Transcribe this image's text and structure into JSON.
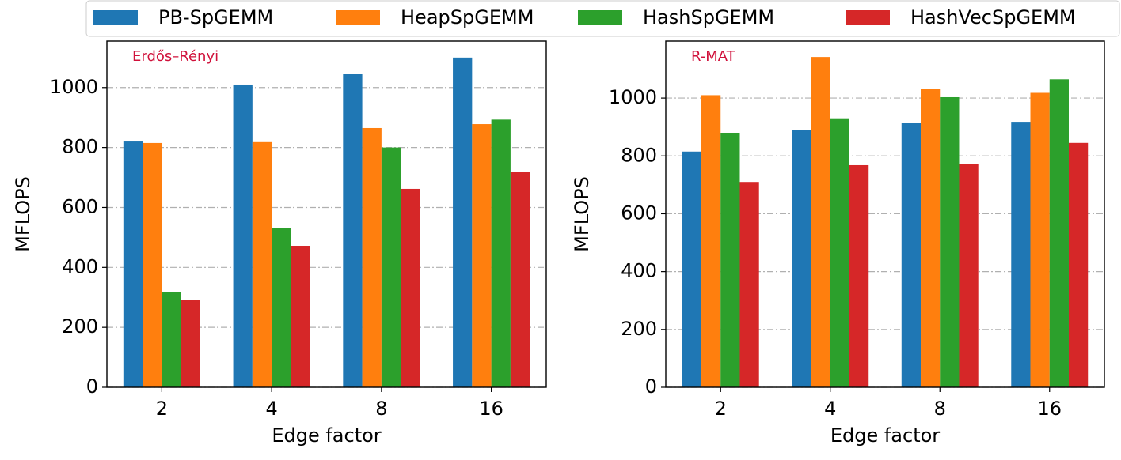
{
  "legend": [
    {
      "name": "PB-SpGEMM",
      "color": "#1f77b4"
    },
    {
      "name": "HeapSpGEMM",
      "color": "#ff7f0e"
    },
    {
      "name": "HashSpGEMM",
      "color": "#2ca02c"
    },
    {
      "name": "HashVecSpGEMM",
      "color": "#d62728"
    }
  ],
  "chart_data": [
    {
      "type": "bar",
      "annotation": "Erdős–Rényi",
      "xlabel": "Edge factor",
      "ylabel": "MFLOPS",
      "categories": [
        "2",
        "4",
        "8",
        "16"
      ],
      "series": [
        {
          "values": [
            820,
            1010,
            1045,
            1100
          ]
        },
        {
          "values": [
            815,
            818,
            865,
            878
          ]
        },
        {
          "values": [
            318,
            532,
            800,
            893
          ]
        },
        {
          "values": [
            292,
            472,
            662,
            718
          ]
        }
      ],
      "ylim": [
        0,
        1155
      ],
      "yticks": [
        0,
        200,
        400,
        600,
        800,
        1000
      ],
      "grid": true
    },
    {
      "type": "bar",
      "annotation": "R-MAT",
      "xlabel": "Edge factor",
      "ylabel": "MFLOPS",
      "categories": [
        "2",
        "4",
        "8",
        "16"
      ],
      "series": [
        {
          "values": [
            815,
            890,
            915,
            918
          ]
        },
        {
          "values": [
            1010,
            1142,
            1032,
            1018
          ]
        },
        {
          "values": [
            880,
            930,
            1003,
            1065
          ]
        },
        {
          "values": [
            710,
            768,
            773,
            845
          ]
        }
      ],
      "ylim": [
        0,
        1197
      ],
      "yticks": [
        0,
        200,
        400,
        600,
        800,
        1000
      ],
      "grid": true
    }
  ]
}
